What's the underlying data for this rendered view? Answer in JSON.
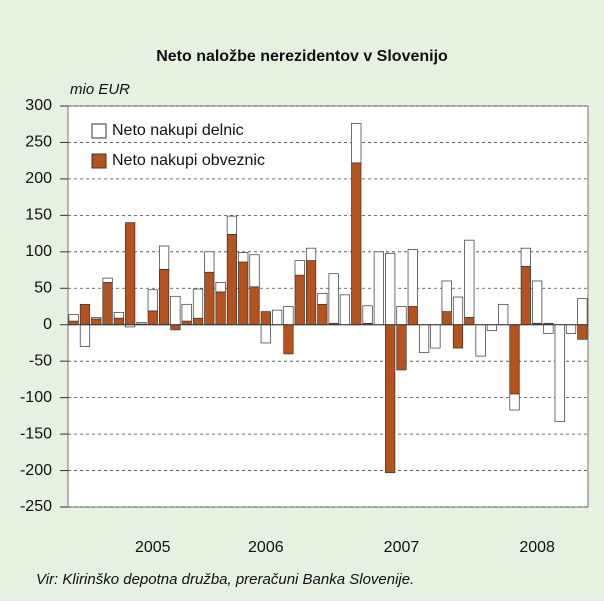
{
  "chart_data": {
    "type": "stacked_bar",
    "title": "Neto naložbe nerezidentov v Slovenijo",
    "y_label": "mio EUR",
    "source": "Vir: Klirinško depotna družba, preračuni Banka Slovenije.",
    "categories": [
      null,
      null,
      null,
      null,
      null,
      null,
      null,
      "2005",
      null,
      null,
      null,
      null,
      null,
      null,
      null,
      null,
      null,
      "2006",
      null,
      null,
      null,
      null,
      null,
      null,
      null,
      null,
      null,
      null,
      null,
      "2007",
      null,
      null,
      null,
      null,
      null,
      null,
      null,
      null,
      null,
      null,
      null,
      "2008",
      null,
      null,
      null,
      null
    ],
    "series": [
      {
        "name": "Neto nakupi delnic",
        "color": "#ffffff",
        "values": [
          9,
          -30,
          2,
          6,
          8,
          -3,
          2,
          29,
          32,
          39,
          23,
          40,
          28,
          13,
          25,
          13,
          44,
          -25,
          20,
          25,
          20,
          17,
          15,
          68,
          41,
          54,
          24,
          100,
          98,
          25,
          78,
          -38,
          -32,
          42,
          38,
          106,
          -43,
          -8,
          28,
          -22,
          25,
          58,
          -12,
          -133,
          -12,
          36
        ]
      },
      {
        "name": "Neto nakupi obveznic",
        "color": "#b5531f",
        "values": [
          5,
          28,
          8,
          58,
          9,
          140,
          1,
          19,
          76,
          -7,
          5,
          9,
          72,
          45,
          124,
          86,
          52,
          18,
          0,
          -40,
          68,
          88,
          28,
          2,
          0,
          222,
          2,
          0,
          -203,
          -62,
          25,
          0,
          0,
          18,
          -32,
          10,
          0,
          0,
          0,
          -95,
          80,
          2,
          2,
          0,
          0,
          -20
        ]
      }
    ],
    "ylim": [
      -250,
      300
    ],
    "yticks": [
      -250,
      -200,
      -150,
      -100,
      -50,
      0,
      50,
      100,
      150,
      200,
      250,
      300
    ],
    "grid": true
  }
}
